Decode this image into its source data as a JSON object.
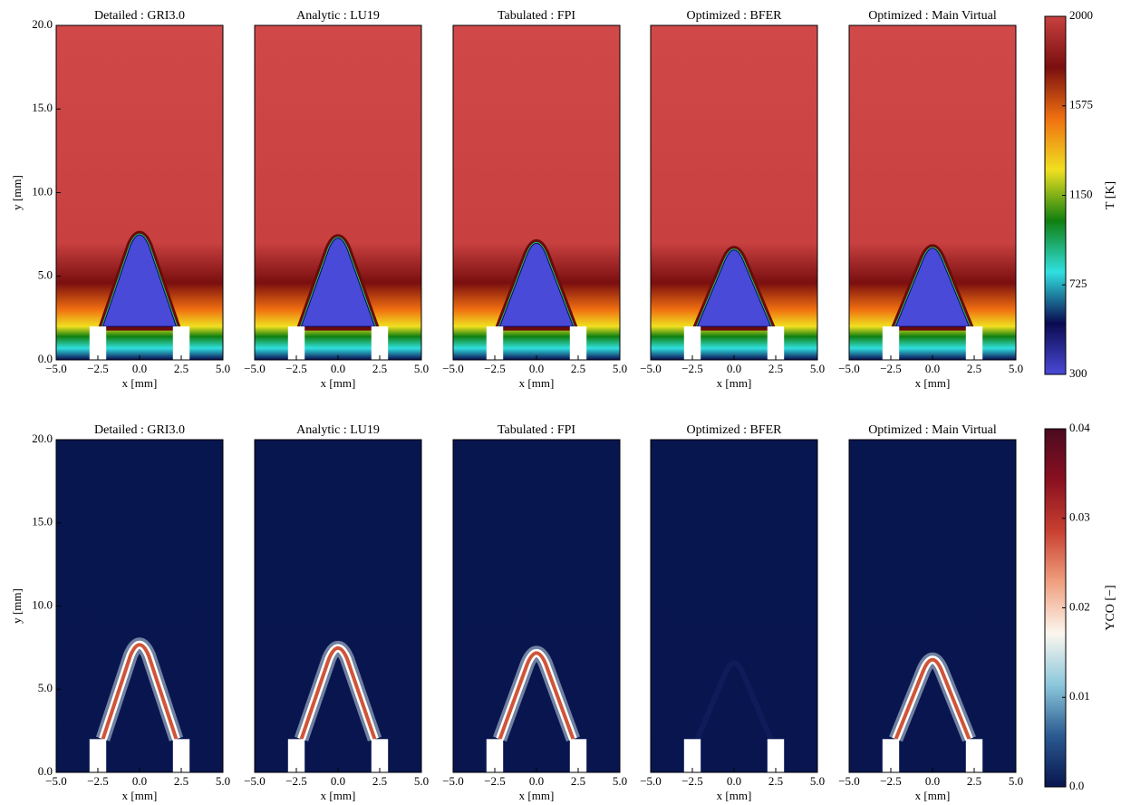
{
  "chart_data": [
    {
      "type": "heatmap",
      "colormap": "temperature",
      "title": "Detailed : GRI3.0",
      "xlabel": "x [mm]",
      "ylabel": "y [mm]",
      "xlim": [
        -5,
        5
      ],
      "ylim": [
        0,
        20
      ],
      "xticks": [
        {
          "value": -5,
          "label": "−5.0"
        },
        {
          "value": -2.5,
          "label": "−2.5"
        },
        {
          "value": 0,
          "label": "0.0"
        },
        2.5,
        {
          "value": 5,
          "label": "5.0"
        }
      ],
      "yticks": [
        {
          "value": 0,
          "label": "0.0"
        },
        {
          "value": 5,
          "label": "5.0"
        },
        {
          "value": 10,
          "label": "10.0"
        },
        {
          "value": 15,
          "label": "15.0"
        },
        {
          "value": 20,
          "label": "20.0"
        }
      ],
      "tip_y": 7.8
    },
    {
      "type": "heatmap",
      "colormap": "temperature",
      "title": "Analytic : LU19",
      "xlabel": "x [mm]",
      "xlim": [
        -5,
        5
      ],
      "ylim": [
        0,
        20
      ],
      "xticks": [
        {
          "value": -5,
          "label": "−5.0"
        },
        {
          "value": -2.5,
          "label": "−2.5"
        },
        {
          "value": 0,
          "label": "0.0"
        },
        2.5,
        {
          "value": 5,
          "label": "5.0"
        }
      ],
      "tip_y": 7.6
    },
    {
      "type": "heatmap",
      "colormap": "temperature",
      "title": "Tabulated : FPI",
      "xlabel": "x [mm]",
      "xlim": [
        -5,
        5
      ],
      "ylim": [
        0,
        20
      ],
      "xticks": [
        {
          "value": -5,
          "label": "−5.0"
        },
        {
          "value": -2.5,
          "label": "−2.5"
        },
        {
          "value": 0,
          "label": "0.0"
        },
        2.5,
        {
          "value": 5,
          "label": "5.0"
        }
      ],
      "tip_y": 7.3
    },
    {
      "type": "heatmap",
      "colormap": "temperature",
      "title": "Optimized : BFER",
      "xlabel": "x [mm]",
      "xlim": [
        -5,
        5
      ],
      "ylim": [
        0,
        20
      ],
      "xticks": [
        {
          "value": -5,
          "label": "−5.0"
        },
        {
          "value": -2.5,
          "label": "−2.5"
        },
        {
          "value": 0,
          "label": "0.0"
        },
        2.5,
        {
          "value": 5,
          "label": "5.0"
        }
      ],
      "tip_y": 6.9
    },
    {
      "type": "heatmap",
      "colormap": "temperature",
      "title": "Optimized : Main Virtual",
      "xlabel": "x [mm]",
      "xlim": [
        -5,
        5
      ],
      "ylim": [
        0,
        20
      ],
      "xticks": [
        {
          "value": -5,
          "label": "−5.0"
        },
        {
          "value": -2.5,
          "label": "−2.5"
        },
        {
          "value": 0,
          "label": "0.0"
        },
        2.5,
        {
          "value": 5,
          "label": "5.0"
        }
      ],
      "tip_y": 7.0
    },
    {
      "type": "heatmap",
      "colormap": "co",
      "title": "Detailed : GRI3.0",
      "xlabel": "x [mm]",
      "ylabel": "y [mm]",
      "xlim": [
        -5,
        5
      ],
      "ylim": [
        0,
        20
      ],
      "xticks": [
        {
          "value": -5,
          "label": "−5.0"
        },
        {
          "value": -2.5,
          "label": "−2.5"
        },
        {
          "value": 0,
          "label": "0.0"
        },
        2.5,
        {
          "value": 5,
          "label": "5.0"
        }
      ],
      "yticks": [
        {
          "value": 0,
          "label": "0.0"
        },
        {
          "value": 5,
          "label": "5.0"
        },
        {
          "value": 10,
          "label": "10.0"
        },
        {
          "value": 15,
          "label": "15.0"
        },
        {
          "value": 20,
          "label": "20.0"
        }
      ],
      "tip_y": 8.0
    },
    {
      "type": "heatmap",
      "colormap": "co",
      "title": "Analytic : LU19",
      "xlabel": "x [mm]",
      "xlim": [
        -5,
        5
      ],
      "ylim": [
        0,
        20
      ],
      "xticks": [
        {
          "value": -5,
          "label": "−5.0"
        },
        {
          "value": -2.5,
          "label": "−2.5"
        },
        {
          "value": 0,
          "label": "0.0"
        },
        2.5,
        {
          "value": 5,
          "label": "5.0"
        }
      ],
      "tip_y": 7.8
    },
    {
      "type": "heatmap",
      "colormap": "co",
      "title": "Tabulated : FPI",
      "xlabel": "x [mm]",
      "xlim": [
        -5,
        5
      ],
      "ylim": [
        0,
        20
      ],
      "xticks": [
        {
          "value": -5,
          "label": "−5.0"
        },
        {
          "value": -2.5,
          "label": "−2.5"
        },
        {
          "value": 0,
          "label": "0.0"
        },
        2.5,
        {
          "value": 5,
          "label": "5.0"
        }
      ],
      "tip_y": 7.5
    },
    {
      "type": "heatmap",
      "colormap": "co-faint",
      "title": "Optimized : BFER",
      "xlabel": "x [mm]",
      "xlim": [
        -5,
        5
      ],
      "ylim": [
        0,
        20
      ],
      "xticks": [
        {
          "value": -5,
          "label": "−5.0"
        },
        {
          "value": -2.5,
          "label": "−2.5"
        },
        {
          "value": 0,
          "label": "0.0"
        },
        2.5,
        {
          "value": 5,
          "label": "5.0"
        }
      ],
      "tip_y": 6.9
    },
    {
      "type": "heatmap",
      "colormap": "co",
      "title": "Optimized : Main Virtual",
      "xlabel": "x [mm]",
      "xlim": [
        -5,
        5
      ],
      "ylim": [
        0,
        20
      ],
      "xticks": [
        {
          "value": -5,
          "label": "−5.0"
        },
        {
          "value": -2.5,
          "label": "−2.5"
        },
        {
          "value": 0,
          "label": "0.0"
        },
        2.5,
        {
          "value": 5,
          "label": "5.0"
        }
      ],
      "tip_y": 7.1
    },
    {
      "type": "colorbar",
      "label": "T [K]",
      "ylim": [
        300,
        2000
      ],
      "yticks": [
        300,
        725,
        1150,
        1575,
        2000
      ],
      "colors": [
        "#4a4ad8",
        "#0a0a50",
        "#30e0e0",
        "#108010",
        "#f0e020",
        "#f07010",
        "#7a0f0f",
        "#c84040"
      ]
    },
    {
      "type": "colorbar",
      "label": "YCO [−]",
      "ylim": [
        0,
        0.04
      ],
      "yticks": [
        {
          "value": 0,
          "label": "0.0"
        },
        0.01,
        0.02,
        0.03,
        0.04
      ],
      "colors": [
        "#08154f",
        "#2a5a90",
        "#8cc8dc",
        "#fbf6ee",
        "#f0a080",
        "#c84030",
        "#8a1020",
        "#4a0a20"
      ]
    }
  ]
}
